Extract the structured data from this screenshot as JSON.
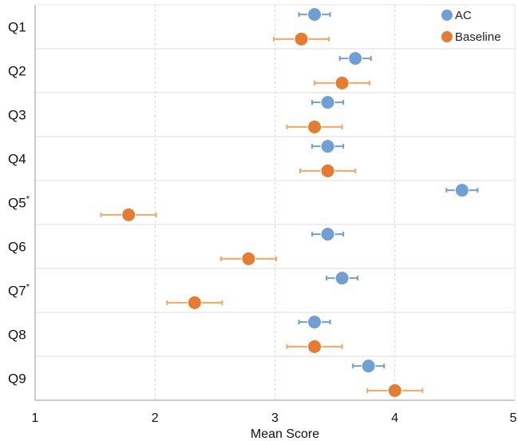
{
  "chart_data": {
    "type": "scatter",
    "orientation": "horizontal",
    "xlabel": "Mean Score",
    "xlim": [
      1,
      5
    ],
    "xticks": [
      "1",
      "2",
      "3",
      "4",
      "5"
    ],
    "grid": "vertical dashed at ticks",
    "legend_position": "top-right",
    "categories": [
      {
        "label": "Q1",
        "sup": ""
      },
      {
        "label": "Q2",
        "sup": ""
      },
      {
        "label": "Q3",
        "sup": ""
      },
      {
        "label": "Q4",
        "sup": ""
      },
      {
        "label": "Q5",
        "sup": "*"
      },
      {
        "label": "Q6",
        "sup": ""
      },
      {
        "label": "Q7",
        "sup": "*"
      },
      {
        "label": "Q8",
        "sup": ""
      },
      {
        "label": "Q9",
        "sup": ""
      }
    ],
    "series": [
      {
        "name": "AC",
        "color": "#6f9fd4",
        "values": [
          3.33,
          3.67,
          3.44,
          3.44,
          4.56,
          3.44,
          3.56,
          3.33,
          3.78
        ],
        "errors": [
          0.13,
          0.13,
          0.13,
          0.13,
          0.13,
          0.13,
          0.13,
          0.13,
          0.13
        ]
      },
      {
        "name": "Baseline",
        "color": "#e57c2f",
        "errors_color": "#f2a860",
        "values": [
          3.22,
          3.56,
          3.33,
          3.44,
          1.78,
          2.78,
          2.33,
          3.33,
          4.0
        ],
        "errors": [
          0.23,
          0.23,
          0.23,
          0.23,
          0.23,
          0.23,
          0.23,
          0.23,
          0.23
        ]
      }
    ]
  }
}
